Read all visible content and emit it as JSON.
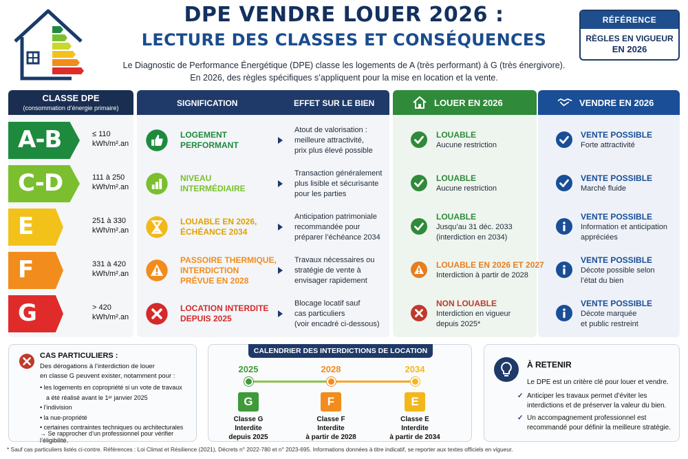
{
  "header": {
    "title_line1": "DPE VENDRE LOUER 2026 :",
    "title_line2": "LECTURE DES CLASSES ET CONSÉQUENCES",
    "intro_line1": "Le Diagnostic de Performance Énergétique (DPE) classe les logements de A (très performant) à G (très énergivore).",
    "intro_line2": "En 2026, des règles spécifiques s’appliquent pour la mise en location et la vente."
  },
  "reference": {
    "label": "RÉFÉRENCE",
    "line1": "RÈGLES EN VIGUEUR",
    "line2": "EN 2026"
  },
  "columns": {
    "classe": "CLASSE DPE",
    "classe_sub": "(consommation d’énergie primaire)",
    "signification": "SIGNIFICATION",
    "effet": "EFFET SUR LE BIEN",
    "louer": "LOUER EN 2026",
    "vendre": "VENDRE EN 2026"
  },
  "rows": [
    {
      "classe": "A-B",
      "color": "#1e8a3e",
      "range1": "≤ 110",
      "range2": "kWh/m².an",
      "sig_color": "#1e8a3e",
      "sig_icon": "thumbs-up-icon",
      "sig": [
        "LOGEMENT",
        "PERFORMANT"
      ],
      "effet": [
        "Atout de valorisation :",
        "meilleure attractivité,",
        "prix plus élevé possible"
      ],
      "louer_icon": "check-circle-icon",
      "louer_color": "#2f8a3a",
      "louer_title": [
        "LOUABLE"
      ],
      "louer_sub": [
        "Aucune restriction"
      ],
      "vendre_icon": "check-circle-icon",
      "vendre_title": "VENTE POSSIBLE",
      "vendre_sub": [
        "Forte attractivité"
      ]
    },
    {
      "classe": "C-D",
      "color": "#7bbf2f",
      "range1": "111 à 250",
      "range2": "kWh/m².an",
      "sig_color": "#7bbf2f",
      "sig_icon": "bar-chart-icon",
      "sig": [
        "NIVEAU",
        "INTERMÉDIAIRE"
      ],
      "effet": [
        "Transaction généralement",
        "plus lisible et sécurisante",
        "pour les parties"
      ],
      "louer_icon": "check-circle-icon",
      "louer_color": "#2f8a3a",
      "louer_title": [
        "LOUABLE"
      ],
      "louer_sub": [
        "Aucune restriction"
      ],
      "vendre_icon": "check-circle-icon",
      "vendre_title": "VENTE POSSIBLE",
      "vendre_sub": [
        "Marché fluide"
      ]
    },
    {
      "classe": "E",
      "color": "#f2c21b",
      "range1": "251 à 330",
      "range2": "kWh/m².an",
      "sig_color": "#f2b81b",
      "sig_icon": "hourglass-icon",
      "sig": [
        "LOUABLE EN 2026,",
        "ÉCHÉANCE 2034"
      ],
      "effet": [
        "Anticipation patrimoniale",
        "recommandée pour",
        "préparer l’échéance 2034"
      ],
      "louer_icon": "check-circle-icon",
      "louer_color": "#2f8a3a",
      "louer_title": [
        "LOUABLE"
      ],
      "louer_sub": [
        "Jusqu’au 31 déc. 2033",
        "(interdiction en 2034)"
      ],
      "vendre_icon": "info-circle-icon",
      "vendre_title": "VENTE POSSIBLE",
      "vendre_sub": [
        "Information et anticipation",
        "appréciées"
      ]
    },
    {
      "classe": "F",
      "color": "#f28c1c",
      "range1": "331 à 420",
      "range2": "kWh/m².an",
      "sig_color": "#f28c1c",
      "sig_icon": "warning-icon",
      "sig": [
        "PASSOIRE THERMIQUE,",
        "INTERDICTION",
        "PRÉVUE EN 2028"
      ],
      "effet": [
        "Travaux nécessaires ou",
        "stratégie de vente à",
        "envisager rapidement"
      ],
      "louer_icon": "warning-icon",
      "louer_color": "#e67e22",
      "louer_title": [
        "LOUABLE EN 2026 ET 2027"
      ],
      "louer_sub": [
        "Interdiction à partir de 2028"
      ],
      "vendre_icon": "info-circle-icon",
      "vendre_title": "VENTE POSSIBLE",
      "vendre_sub": [
        "Décote possible selon",
        "l’état du bien"
      ]
    },
    {
      "classe": "G",
      "color": "#e02b2b",
      "range1": "> 420",
      "range2": "kWh/m².an",
      "sig_color": "#d42a2a",
      "sig_icon": "cross-circle-icon",
      "sig": [
        "LOCATION INTERDITE",
        "DEPUIS 2025"
      ],
      "effet": [
        "Blocage locatif sauf",
        "cas particuliers",
        "(voir encadré ci-dessous)"
      ],
      "louer_icon": "cross-circle-icon",
      "louer_color": "#c0392b",
      "louer_title": [
        "NON LOUABLE"
      ],
      "louer_sub": [
        "Interdiction en vigueur",
        "depuis 2025*"
      ],
      "vendre_icon": "info-circle-icon",
      "vendre_title": "VENTE POSSIBLE",
      "vendre_sub": [
        "Décote marquée",
        "et public restreint"
      ]
    }
  ],
  "cas": {
    "title": "CAS PARTICULIERS :",
    "p1": "Des dérogations à l’interdiction de louer",
    "p2": "en classe G peuvent exister, notamment pour :",
    "items": [
      "les logements en copropriété si un vote de travaux",
      "a été réalisé avant le 1ᵉʳ janvier 2025",
      "l’indivision",
      "la nue-propriété",
      "certaines contraintes techniques ou architecturales"
    ],
    "note": "→ Se rapprocher d’un professionnel pour vérifier l’éligibilité."
  },
  "calendar": {
    "title": "CALENDRIER DES INTERDICTIONS DE LOCATION",
    "steps": [
      {
        "year": "2025",
        "letter": "G",
        "color": "#3f9a3a",
        "cap": [
          "Classe G",
          "Interdite",
          "depuis 2025"
        ]
      },
      {
        "year": "2028",
        "letter": "F",
        "color": "#f28c1c",
        "cap": [
          "Classe F",
          "Interdite",
          "à partir de 2028"
        ]
      },
      {
        "year": "2034",
        "letter": "E",
        "color": "#f2b81b",
        "cap": [
          "Classe E",
          "Interdite",
          "à partir de 2034"
        ]
      }
    ]
  },
  "retenir": {
    "title": "À RETENIR",
    "p": "Le DPE est un critère clé pour louer et vendre.",
    "items": [
      "Anticiper les travaux permet d’éviter les interdictions et de préserver la valeur du bien.",
      "Un accompagnement professionnel est recommandé pour définir la meilleure stratégie."
    ]
  },
  "footnote": "* Sauf cas particuliers listés ci-contre. Références : Loi Climat et Résilience (2021), Décrets n° 2022-780 et n° 2023-695. Informations données à titre indicatif, se reporter aux textes officiels en vigueur."
}
